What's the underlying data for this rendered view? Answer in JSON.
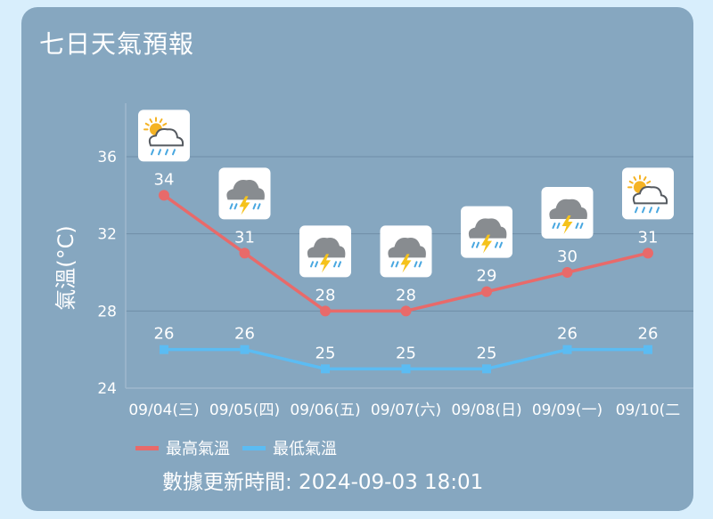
{
  "title": "七日天氣預報",
  "updated": "數據更新時間: 2024-09-03 18:01",
  "chart_data": {
    "type": "line",
    "ylabel": "氣溫(°C)",
    "xlabel": "",
    "categories": [
      "09/04(三)",
      "09/05(四)",
      "09/06(五)",
      "09/07(六)",
      "09/08(日)",
      "09/09(一)",
      "09/10(二"
    ],
    "ylim": [
      24,
      38
    ],
    "yticks": [
      24,
      28,
      32,
      36
    ],
    "grid": true,
    "legend_position": "bottom-left",
    "series": [
      {
        "name": "最高氣溫",
        "color": "#e86a6a",
        "marker": "circle",
        "values": [
          34,
          31,
          28,
          28,
          29,
          30,
          31
        ]
      },
      {
        "name": "最低氣溫",
        "color": "#5bbcf3",
        "marker": "square",
        "values": [
          26,
          26,
          25,
          25,
          25,
          26,
          26
        ]
      }
    ],
    "icons": [
      "sun-cloud-rain-icon",
      "thunderstorm-icon",
      "thunderstorm-icon",
      "thunderstorm-icon",
      "thunderstorm-icon",
      "thunderstorm-icon",
      "sun-cloud-rain-icon"
    ]
  }
}
